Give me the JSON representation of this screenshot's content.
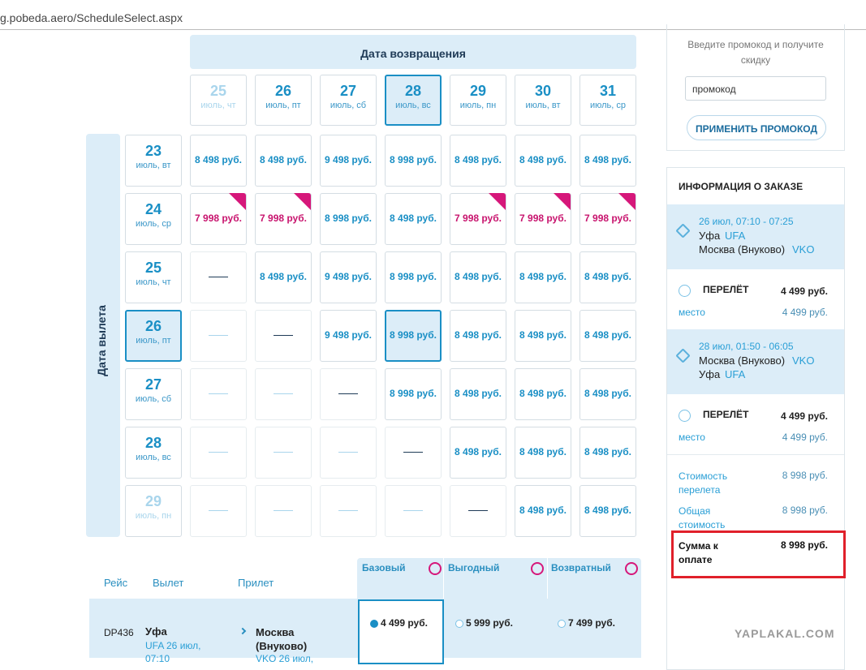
{
  "url": "g.pobeda.aero/ScheduleSelect.aspx",
  "calendar": {
    "return_header": "Дата возвращения",
    "depart_header": "Дата вылета",
    "return_dates": [
      {
        "day": "25",
        "label": "июль, чт"
      },
      {
        "day": "26",
        "label": "июль, пт"
      },
      {
        "day": "27",
        "label": "июль, сб"
      },
      {
        "day": "28",
        "label": "июль, вс"
      },
      {
        "day": "29",
        "label": "июль, пн"
      },
      {
        "day": "30",
        "label": "июль, вт"
      },
      {
        "day": "31",
        "label": "июль, ср"
      }
    ],
    "depart_dates": [
      {
        "day": "23",
        "label": "июль, вт"
      },
      {
        "day": "24",
        "label": "июль, ср"
      },
      {
        "day": "25",
        "label": "июль, чт"
      },
      {
        "day": "26",
        "label": "июль, пт"
      },
      {
        "day": "27",
        "label": "июль, сб"
      },
      {
        "day": "28",
        "label": "июль, вс"
      },
      {
        "day": "29",
        "label": "июль, пн"
      }
    ],
    "disabled_return": [
      0
    ],
    "disabled_depart": [
      6
    ],
    "selected_return": 3,
    "selected_depart": 3,
    "promo_color": "#d6177a",
    "promo": [
      [
        1,
        0
      ],
      [
        1,
        1
      ],
      [
        1,
        4
      ],
      [
        1,
        5
      ],
      [
        1,
        6
      ]
    ],
    "rows": [
      [
        "8 498 руб.",
        "8 498 руб.",
        "9 498 руб.",
        "8 998 руб.",
        "8 498 руб.",
        "8 498 руб.",
        "8 498 руб."
      ],
      [
        "7 998 руб.",
        "7 998 руб.",
        "8 998 руб.",
        "8 498 руб.",
        "7 998 руб.",
        "7 998 руб.",
        "7 998 руб."
      ],
      [
        null,
        "8 498 руб.",
        "9 498 руб.",
        "8 998 руб.",
        "8 498 руб.",
        "8 498 руб.",
        "8 498 руб."
      ],
      [
        null,
        null,
        "9 498 руб.",
        "8 998 руб.",
        "8 498 руб.",
        "8 498 руб.",
        "8 498 руб."
      ],
      [
        null,
        null,
        null,
        "8 998 руб.",
        "8 498 руб.",
        "8 498 руб.",
        "8 498 руб."
      ],
      [
        null,
        null,
        null,
        null,
        "8 498 руб.",
        "8 498 руб.",
        "8 498 руб."
      ],
      [
        null,
        null,
        null,
        null,
        null,
        "8 498 руб.",
        "8 498 руб."
      ]
    ]
  },
  "promo": {
    "hint": "Введите промокод и получите скидку",
    "placeholder": "промокод",
    "button": "ПРИМЕНИТЬ ПРОМОКОД"
  },
  "order": {
    "title": "ИНФОРМАЦИЯ О ЗАКАЗЕ",
    "segments": [
      {
        "time": "26 июл, 07:10 - 07:25",
        "from_city": "Уфа",
        "from_code": "UFA",
        "to_city": "Москва (Внуково)",
        "to_code": "VKO",
        "flight_label": "ПЕРЕЛЁТ",
        "flight_price": "4 499 руб.",
        "seat_label": "место",
        "seat_price": "4 499 руб."
      },
      {
        "time": "28 июл, 01:50 - 06:05",
        "from_city": "Москва (Внуково)",
        "from_code": "VKO",
        "to_city": "Уфа",
        "to_code": "UFA",
        "flight_label": "ПЕРЕЛЁТ",
        "flight_price": "4 499 руб.",
        "seat_label": "место",
        "seat_price": "4 499 руб."
      }
    ],
    "totals": [
      {
        "label": "Стоимость перелета",
        "value": "8 998 руб."
      },
      {
        "label": "Общая стоимость",
        "value": "8 998 руб."
      },
      {
        "label": "Сумма к оплате",
        "value": "8 998 руб."
      }
    ]
  },
  "flights": {
    "headers": [
      "Рейс",
      "Вылет",
      "Прилет"
    ],
    "fares": [
      "Базовый",
      "Выгодный",
      "Возвратный"
    ],
    "row": {
      "flight": "DP436",
      "dep_city": "Уфа",
      "dep_detail": "UFA 26 июл,",
      "dep_time": "07:10",
      "arr_city": "Москва (Внуково)",
      "arr_detail": "VKO 26 июл,",
      "prices": [
        "4 499 руб.",
        "5 999 руб.",
        "7 499 руб."
      ]
    }
  },
  "watermark": "YAPLAKAL.COM"
}
